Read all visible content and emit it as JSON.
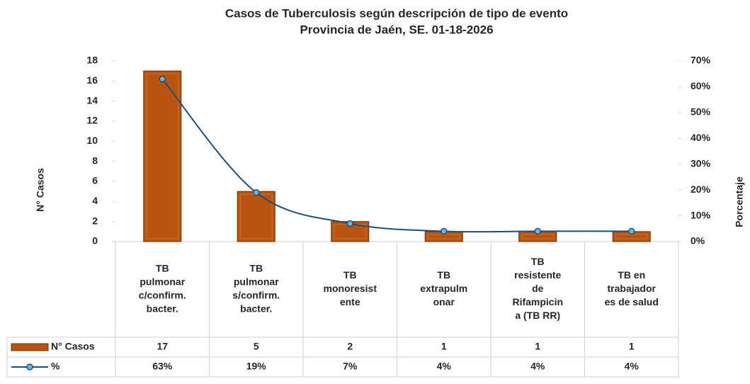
{
  "chart_data": {
    "type": "bar-line",
    "title": "Casos de Tuberculosis según descripción de tipo de evento",
    "subtitle": "Provincia de Jaén, SE. 01-18-2026",
    "y_label": "N° Casos",
    "y2_label": "Porcentaje",
    "categories": [
      [
        "TB",
        "pulmonar",
        "c/confirm.",
        "bacter."
      ],
      [
        "TB",
        "pulmonar",
        "s/confirm.",
        "bacter."
      ],
      [
        "TB",
        "monoresist",
        "ente"
      ],
      [
        "TB",
        "extrapulm",
        "onar"
      ],
      [
        "TB",
        "resistente",
        "de",
        "Rifampicin",
        "a (TB RR)"
      ],
      [
        "TB en",
        "trabajador",
        "es de salud"
      ]
    ],
    "series": [
      {
        "name": "N° Casos",
        "type": "bar",
        "color": "#b8540f",
        "values": [
          17,
          5,
          2,
          1,
          1,
          1
        ]
      },
      {
        "name": "%",
        "type": "line",
        "axis": "y2",
        "color": "#1f4e79",
        "values": [
          63,
          19,
          7,
          4,
          4,
          4
        ],
        "value_labels": [
          "63%",
          "19%",
          "7%",
          "4%",
          "4%",
          "4%"
        ]
      }
    ],
    "ylim": [
      0,
      18
    ],
    "yticks": [
      0,
      2,
      4,
      6,
      8,
      10,
      12,
      14,
      16,
      18
    ],
    "y2lim": [
      0,
      70
    ],
    "y2ticks": [
      {
        "value": 0,
        "label": "0%"
      },
      {
        "value": 10,
        "label": "10%"
      },
      {
        "value": 20,
        "label": "20%"
      },
      {
        "value": 30,
        "label": "30%"
      },
      {
        "value": 40,
        "label": "40%"
      },
      {
        "value": 50,
        "label": "50%"
      },
      {
        "value": 60,
        "label": "60%"
      },
      {
        "value": 70,
        "label": "70%"
      }
    ],
    "grid": false,
    "data_table": true
  }
}
